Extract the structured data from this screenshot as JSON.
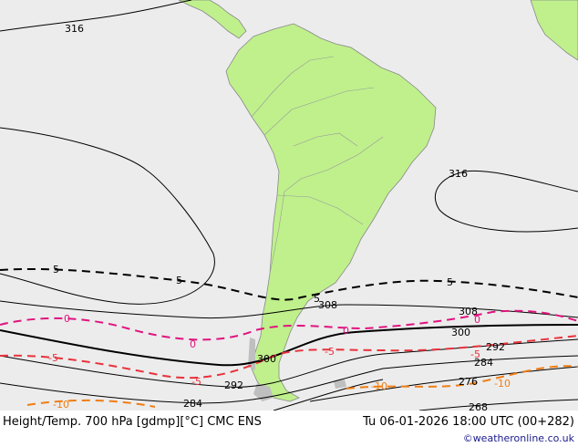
{
  "colors": {
    "ocean": "#ececec",
    "land": "#bff08c",
    "border": "#999999",
    "height_contour": "#000000",
    "temp_5": "#000000",
    "temp_0": "#e0147e",
    "temp_minus5": "#e8323c",
    "temp_minus10": "#f07d14"
  },
  "height_contour_labels": [
    "316",
    "316",
    "308",
    "308",
    "300",
    "300",
    "292",
    "292",
    "284",
    "284",
    "276",
    "268"
  ],
  "temperature_labels": [
    "5",
    "5",
    "5",
    "5",
    "0",
    "0",
    "0",
    "0",
    "-5",
    "-5",
    "-5",
    "-5",
    "-10",
    "-10",
    "-10"
  ],
  "footer": {
    "title": "Height/Temp. 700 hPa [gdmp][°C] CMC ENS",
    "datetime": "Tu 06-01-2026 18:00 UTC (00+282)",
    "credit": "©weatheronline.co.uk"
  }
}
